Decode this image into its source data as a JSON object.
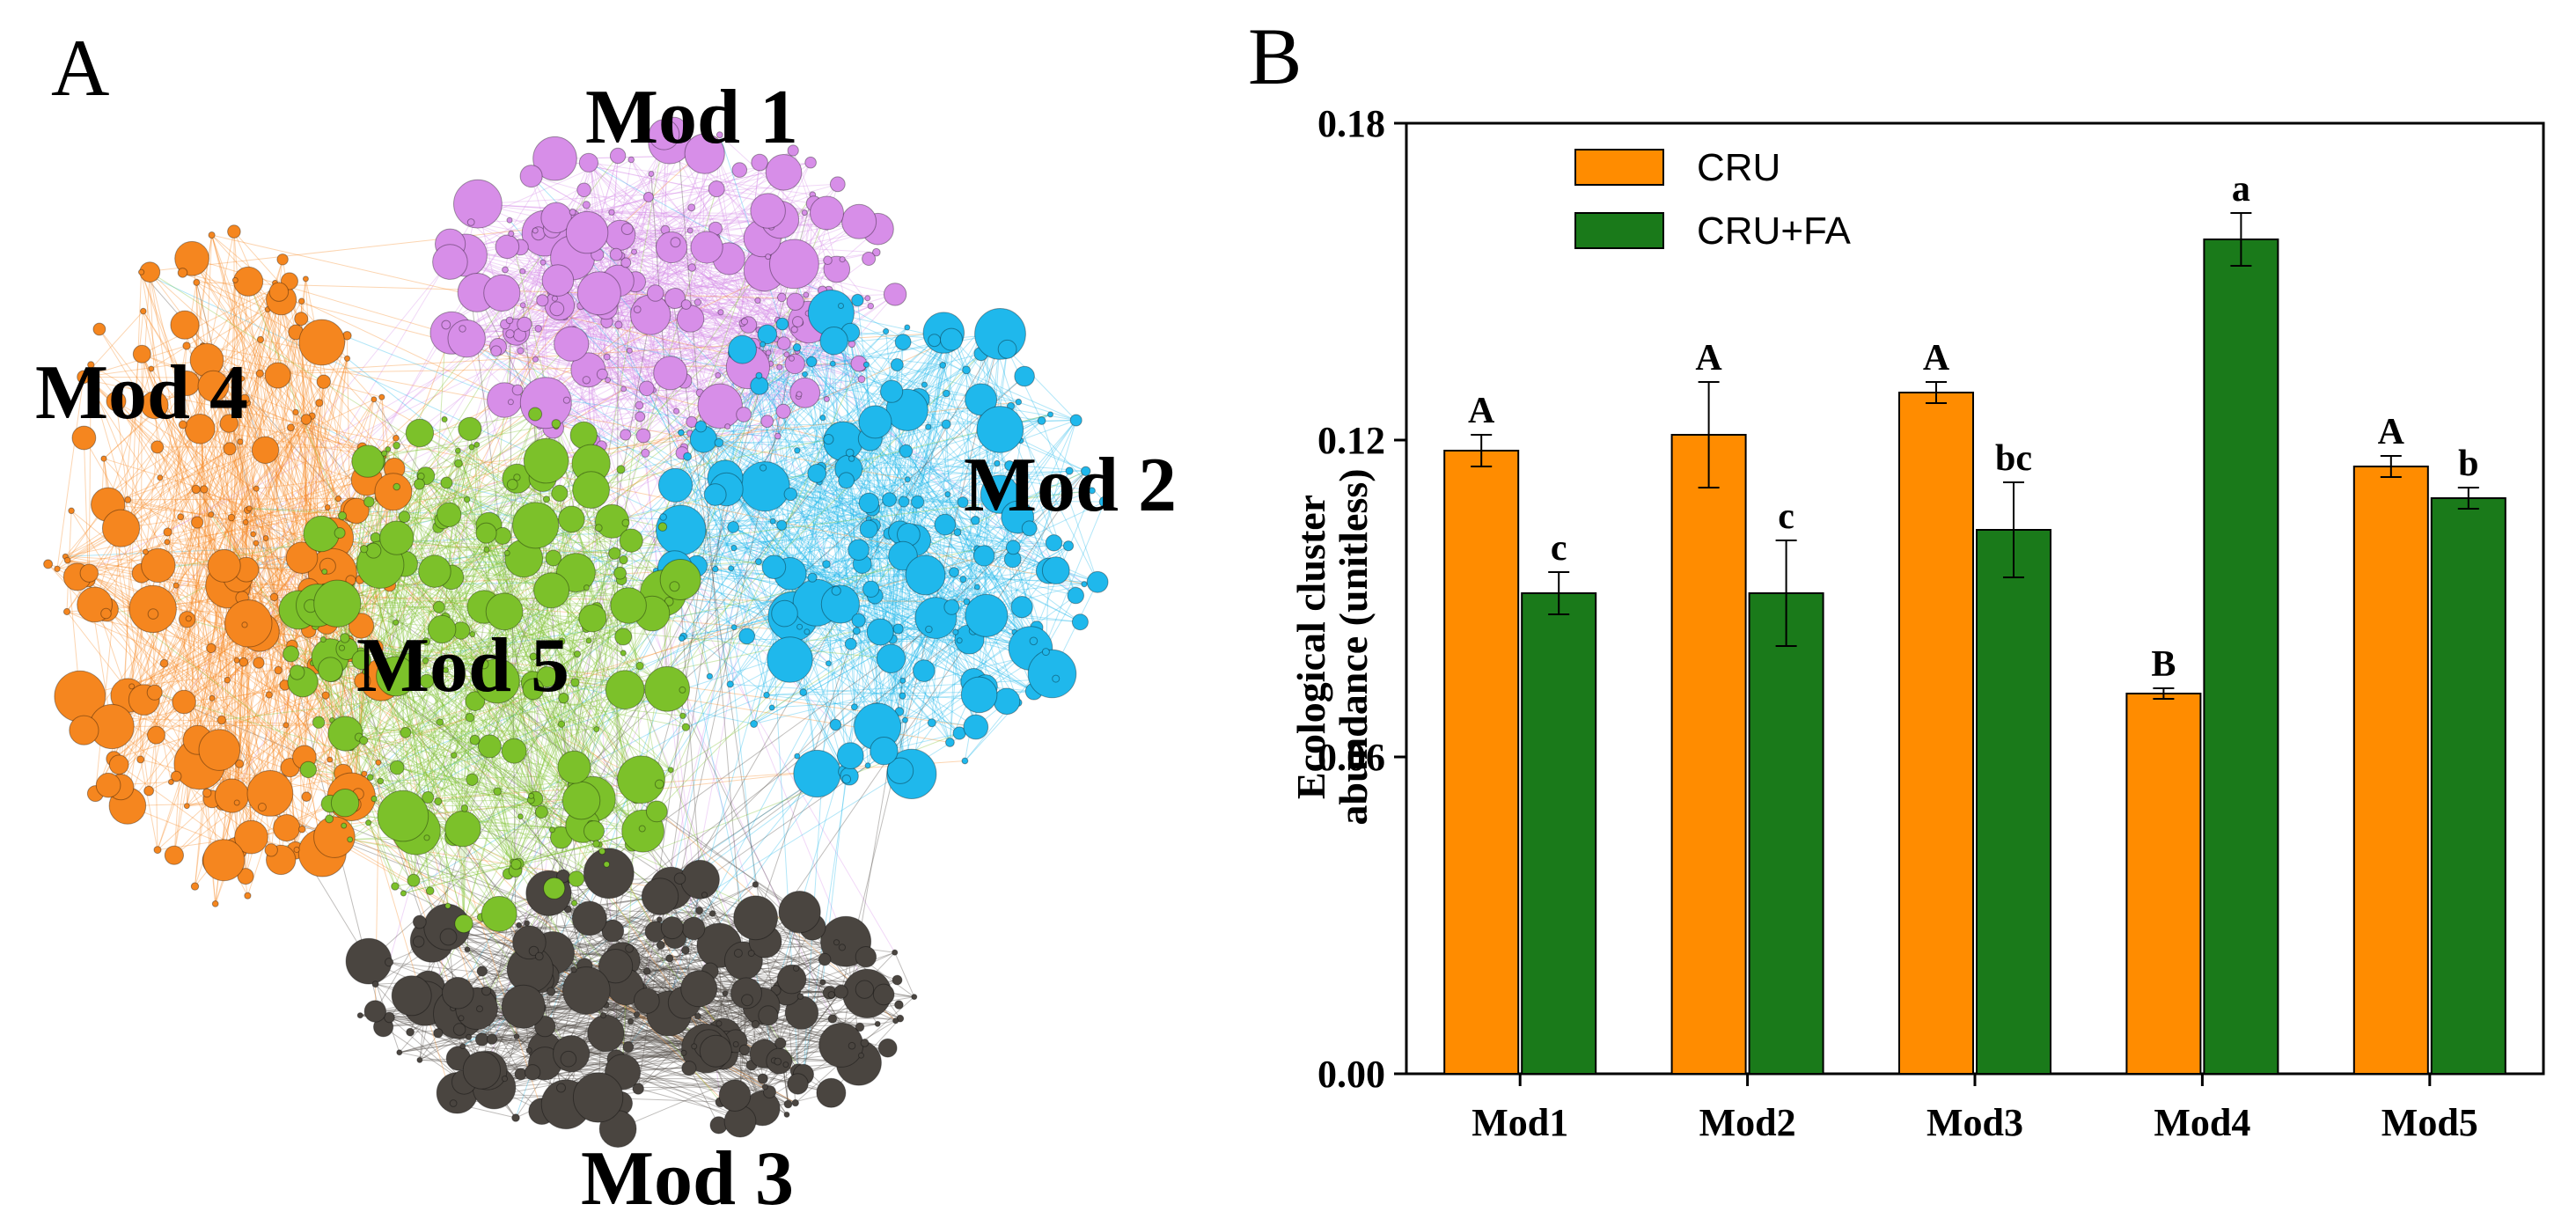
{
  "panels": {
    "a_label": "A",
    "b_label": "B"
  },
  "network": {
    "modules": [
      {
        "name": "Mod 1",
        "color": "#d78ee8"
      },
      {
        "name": "Mod 2",
        "color": "#1fb8ec"
      },
      {
        "name": "Mod 3",
        "color": "#4a4540"
      },
      {
        "name": "Mod 4",
        "color": "#f5861f"
      },
      {
        "name": "Mod 5",
        "color": "#7cc12a"
      }
    ]
  },
  "colors": {
    "cru": "#ff8c00",
    "cru_fa": "#1a7a1a",
    "axis": "#000000"
  },
  "chart_data": {
    "type": "bar",
    "title": "",
    "xlabel": "",
    "ylabel_line1": "Ecological cluster",
    "ylabel_line2": "abundance (unitless)",
    "ylim": [
      0,
      0.18
    ],
    "yticks": [
      "0.00",
      "0.06",
      "0.12",
      "0.18"
    ],
    "ytick_values": [
      0,
      0.06,
      0.12,
      0.18
    ],
    "categories": [
      "Mod1",
      "Mod2",
      "Mod3",
      "Mod4",
      "Mod5"
    ],
    "legend_position": "top-left",
    "series": [
      {
        "name": "CRU",
        "values": [
          0.118,
          0.121,
          0.129,
          0.072,
          0.115
        ],
        "errors": [
          0.003,
          0.01,
          0.002,
          0.001,
          0.002
        ],
        "letters": [
          "A",
          "A",
          "A",
          "B",
          "A"
        ]
      },
      {
        "name": "CRU+FA",
        "values": [
          0.091,
          0.091,
          0.103,
          0.158,
          0.109
        ],
        "errors": [
          0.004,
          0.01,
          0.009,
          0.005,
          0.002
        ],
        "letters": [
          "c",
          "c",
          "bc",
          "a",
          "b"
        ]
      }
    ]
  }
}
